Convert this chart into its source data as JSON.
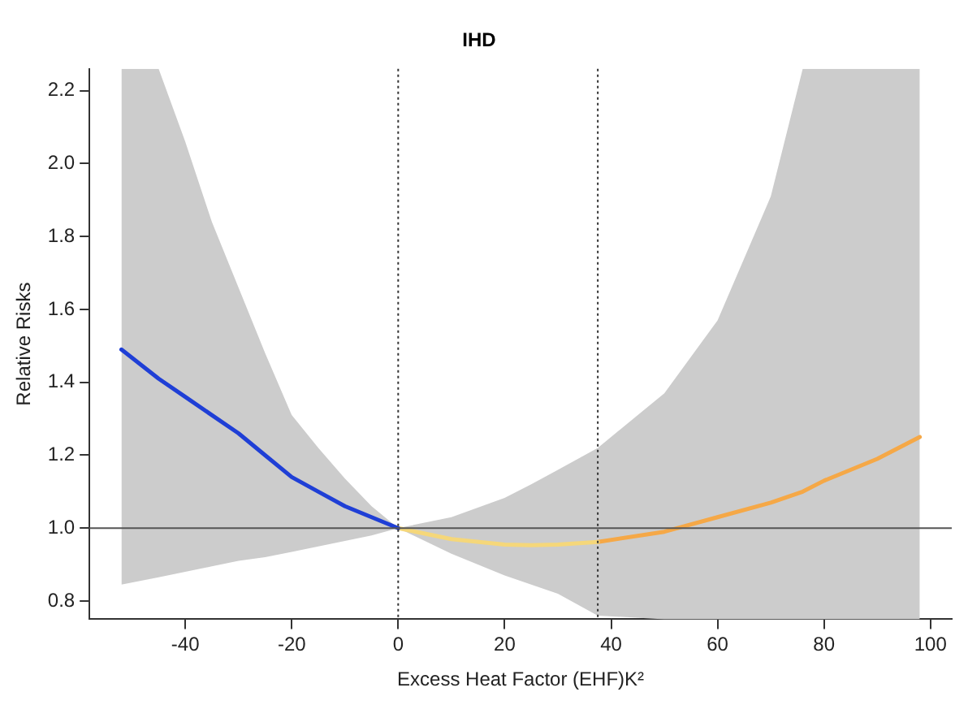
{
  "chart_data": {
    "type": "line",
    "title": "IHD",
    "xlabel": "Excess Heat Factor (EHF)K²",
    "ylabel": "Relative Risks",
    "xlim": [
      -58,
      104
    ],
    "xticks": [
      -40,
      -20,
      0,
      20,
      40,
      60,
      80,
      100
    ],
    "ylim": [
      0.75,
      2.26
    ],
    "yticks": [
      0.8,
      {
        "value": 1.0,
        "label": "1.0"
      },
      1.2,
      1.4,
      1.6,
      1.8,
      {
        "value": 2.0,
        "label": "2.0"
      },
      2.2
    ],
    "series": [
      {
        "color": "#1f3fd6",
        "x": [
          -52,
          -45,
          -40,
          -35,
          -30,
          -25,
          -20,
          -15,
          -10,
          -5,
          0
        ],
        "values": [
          1.49,
          1.41,
          1.36,
          1.31,
          1.26,
          1.2,
          1.14,
          1.1,
          1.06,
          1.03,
          1.0
        ],
        "lower": [
          0.845,
          0.865,
          0.88,
          0.895,
          0.91,
          0.92,
          0.935,
          0.95,
          0.965,
          0.98,
          1.0
        ],
        "upper": [
          2.26,
          2.26,
          2.06,
          1.84,
          1.66,
          1.48,
          1.31,
          1.22,
          1.136,
          1.06,
          1.0
        ]
      },
      {
        "color": "#f5d77a",
        "x": [
          0,
          10,
          20,
          25,
          30,
          37.5
        ],
        "values": [
          1.0,
          0.97,
          0.955,
          0.953,
          0.955,
          0.962
        ],
        "lower": [
          1.0,
          0.93,
          0.87,
          0.845,
          0.82,
          0.76
        ],
        "upper": [
          1.0,
          1.03,
          1.083,
          1.12,
          1.16,
          1.22
        ]
      },
      {
        "color": "#f5a847",
        "x": [
          37.5,
          50,
          60,
          70,
          76,
          80,
          90,
          98
        ],
        "values": [
          0.962,
          0.99,
          1.03,
          1.07,
          1.1,
          1.13,
          1.19,
          1.25
        ],
        "lower": [
          0.76,
          0.75,
          0.75,
          0.75,
          0.75,
          0.75,
          0.75,
          0.75
        ],
        "upper": [
          1.22,
          1.37,
          1.57,
          1.91,
          2.26,
          2.26,
          2.26,
          2.26
        ]
      }
    ],
    "ref_lines": [
      {
        "axis": "x",
        "value": 0,
        "line_style": "dotted",
        "color": "#333333"
      },
      {
        "axis": "x",
        "value": 37.5,
        "line_style": "dotted",
        "color": "#333333"
      },
      {
        "axis": "y",
        "value": 1.0,
        "line_style": "solid",
        "color": "#555555"
      }
    ],
    "legend": false,
    "marker": "none",
    "line_style": "solid"
  }
}
